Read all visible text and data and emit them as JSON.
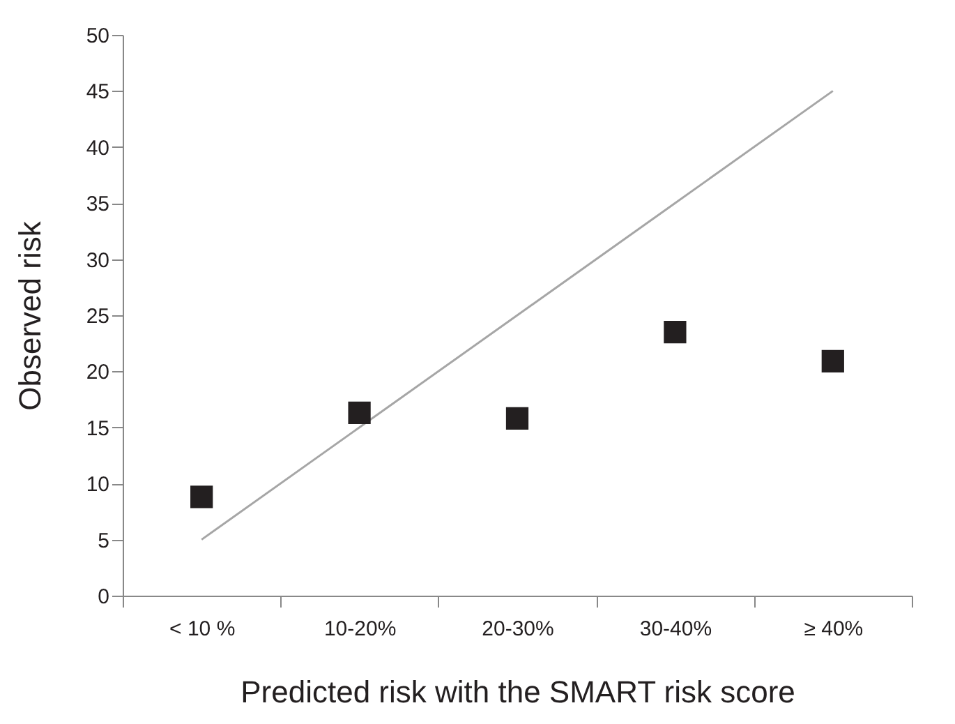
{
  "chart_data": {
    "type": "scatter",
    "xlabel": "Predicted risk with the SMART risk score",
    "ylabel": "Observed risk",
    "categories": [
      "< 10 %",
      "10-20%",
      "20-30%",
      "30-40%",
      "≥ 40%"
    ],
    "ylim": [
      0,
      50
    ],
    "yticks": [
      0,
      5,
      10,
      15,
      20,
      25,
      30,
      35,
      40,
      45,
      50
    ],
    "grid": false,
    "series": [
      {
        "type": "line",
        "color": "#a6a6a6",
        "values": [
          5,
          15,
          25,
          35,
          45
        ]
      },
      {
        "color": "#231f20",
        "marker": "square",
        "values": [
          8.8,
          16.3,
          15.8,
          23.5,
          20.9
        ]
      }
    ]
  }
}
